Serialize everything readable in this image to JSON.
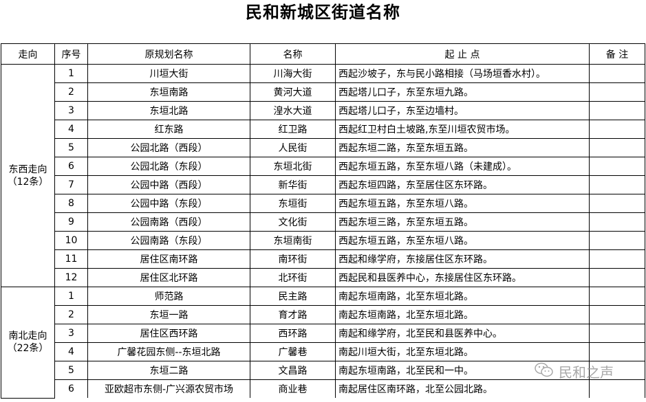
{
  "title": "民和新城区街道名称",
  "headers": [
    "走向",
    "序号",
    "原规划名称",
    "名称",
    "起 止 点",
    "备 注"
  ],
  "groups": [
    {
      "direction": "东西走向",
      "count": "（12条）",
      "rows": [
        {
          "no": "1",
          "original": "川垣大街",
          "name": "川海大街",
          "endpoints": "西起沙坡子，东与民小路相接（马场垣香水村）。",
          "note": ""
        },
        {
          "no": "2",
          "original": "东垣南路",
          "name": "黄河大道",
          "endpoints": "西起塔儿口子，东至东垣九路。",
          "note": ""
        },
        {
          "no": "3",
          "original": "东垣北路",
          "name": "湟水大道",
          "endpoints": "西起塔儿口子，东至边墙村。",
          "note": ""
        },
        {
          "no": "4",
          "original": "红东路",
          "name": "红卫路",
          "endpoints": "西起红卫村白土坡路,东至川垣农贸市场。",
          "note": ""
        },
        {
          "no": "5",
          "original": "公园北路（西段）",
          "name": "人民街",
          "endpoints": "西起东垣二路，东至东垣五路。",
          "note": ""
        },
        {
          "no": "6",
          "original": "公园北路（东段）",
          "name": "东垣北街",
          "endpoints": "西起东垣五路，东至东垣八路（未建成）。",
          "note": ""
        },
        {
          "no": "7",
          "original": "公园中路（西段）",
          "name": "新华街",
          "endpoints": "西起东垣四路，东至居住区东环路。",
          "note": ""
        },
        {
          "no": "8",
          "original": "公园中路（东段）",
          "name": "东垣街",
          "endpoints": "西起东垣五路，东至东垣八路。",
          "note": ""
        },
        {
          "no": "9",
          "original": "公园南路（西段）",
          "name": "文化街",
          "endpoints": "西起东垣三路，东至东垣五路。",
          "note": ""
        },
        {
          "no": "10",
          "original": "公园南路（东段）",
          "name": "东垣南街",
          "endpoints": "西起东垣五路，东至东垣八路。",
          "note": ""
        },
        {
          "no": "11",
          "original": "居住区南环路",
          "name": "南环街",
          "endpoints": "西起和缘学府，东接居住区东环路。",
          "note": ""
        },
        {
          "no": "12",
          "original": "居住区北环路",
          "name": "北环街",
          "endpoints": "西起民和县医养中心，东接居住区东环路。",
          "note": ""
        }
      ]
    },
    {
      "direction": "南北走向",
      "count": "（22条）",
      "rows": [
        {
          "no": "1",
          "original": "师范路",
          "name": "民主路",
          "endpoints": "南起东垣南路，北至东垣北路。",
          "note": ""
        },
        {
          "no": "2",
          "original": "东垣一路",
          "name": "育才路",
          "endpoints": "南起东垣南路，北至东垣北路。",
          "note": ""
        },
        {
          "no": "3",
          "original": "居住区西环路",
          "name": "西环路",
          "endpoints": "南起和缘学府，北至民和县医养中心。",
          "note": ""
        },
        {
          "no": "4",
          "original": "广馨花园东侧--东垣北路",
          "name": "广馨巷",
          "endpoints": "南起川垣大街，北至东垣北路。",
          "note": ""
        },
        {
          "no": "5",
          "original": "东垣二路",
          "name": "文昌路",
          "endpoints": "南起东垣南路，北至民和一中。",
          "note": ""
        },
        {
          "no": "6",
          "original": "亚欧超市东侧-广兴源农贸市场",
          "name": "商业巷",
          "endpoints": "南起居住区南环路，北至公园北路。",
          "note": ""
        }
      ]
    }
  ],
  "watermark": {
    "icon": "wechat-icon",
    "text": "民和之声"
  }
}
